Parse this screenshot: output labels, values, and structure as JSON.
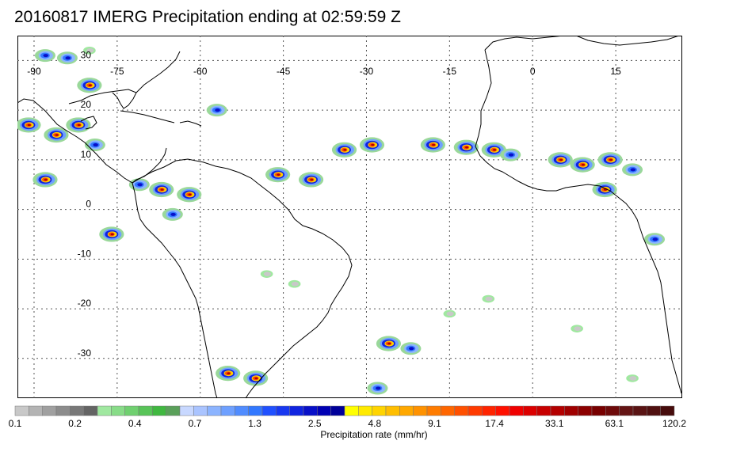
{
  "title": "20160817 IMERG Precipitation ending at 02:59:59 Z",
  "map": {
    "lon_labels": [
      "-90",
      "-75",
      "-60",
      "-45",
      "-30",
      "-15",
      "0",
      "15"
    ],
    "lat_labels": [
      "30",
      "20",
      "10",
      "0",
      "-10",
      "-20",
      "-30"
    ],
    "grid": true,
    "extent": {
      "lon": [
        -93,
        27
      ],
      "lat": [
        -38,
        35
      ]
    },
    "land_outline_color": "#000000",
    "grid_color": "#555555"
  },
  "colorbar": {
    "title": "Precipitation rate (mm/hr)",
    "tick_labels": [
      "0.1",
      "0.2",
      "0.4",
      "0.7",
      "1.3",
      "2.5",
      "4.8",
      "9.1",
      "17.4",
      "33.1",
      "63.1",
      "120.2"
    ],
    "colors": [
      "#c8c8c8",
      "#b4b4b4",
      "#a0a0a0",
      "#8c8c8c",
      "#787878",
      "#646464",
      "#a0e8a0",
      "#88dc88",
      "#70d070",
      "#58c458",
      "#40b840",
      "#5aa05a",
      "#c8d8ff",
      "#aac4ff",
      "#8cb4ff",
      "#6ea0ff",
      "#508cff",
      "#3278ff",
      "#2050ff",
      "#1838f0",
      "#1024e0",
      "#0810c8",
      "#0000b4",
      "#00009a",
      "#ffff00",
      "#ffea00",
      "#ffd400",
      "#ffbe00",
      "#ffa800",
      "#ff9200",
      "#ff7c00",
      "#ff6600",
      "#ff5000",
      "#ff3a00",
      "#ff2400",
      "#ff1000",
      "#f00000",
      "#dc0000",
      "#c80000",
      "#b40000",
      "#a00000",
      "#8c0000",
      "#780000",
      "#6e0a0a",
      "#641414",
      "#5a1414",
      "#501010",
      "#460c0c"
    ]
  },
  "precip_cells": [
    {
      "lon": -88,
      "lat": 31,
      "level": "moderate"
    },
    {
      "lon": -84,
      "lat": 30.5,
      "level": "moderate"
    },
    {
      "lon": -80,
      "lat": 25,
      "level": "heavy"
    },
    {
      "lon": -91,
      "lat": 17,
      "level": "heavy"
    },
    {
      "lon": -86,
      "lat": 15,
      "level": "heavy"
    },
    {
      "lon": -82,
      "lat": 17,
      "level": "heavy"
    },
    {
      "lon": -79,
      "lat": 13,
      "level": "moderate"
    },
    {
      "lon": -88,
      "lat": 6,
      "level": "heavy"
    },
    {
      "lon": -71,
      "lat": 5,
      "level": "moderate"
    },
    {
      "lon": -67,
      "lat": 4,
      "level": "heavy"
    },
    {
      "lon": -62,
      "lat": 3,
      "level": "heavy"
    },
    {
      "lon": -65,
      "lat": -1,
      "level": "moderate"
    },
    {
      "lon": -76,
      "lat": -5,
      "level": "heavy"
    },
    {
      "lon": -57,
      "lat": 20,
      "level": "moderate"
    },
    {
      "lon": -46,
      "lat": 7,
      "level": "heavy"
    },
    {
      "lon": -40,
      "lat": 6,
      "level": "heavy"
    },
    {
      "lon": -34,
      "lat": 12,
      "level": "heavy"
    },
    {
      "lon": -29,
      "lat": 13,
      "level": "heavy"
    },
    {
      "lon": -18,
      "lat": 13,
      "level": "heavy"
    },
    {
      "lon": -12,
      "lat": 12.5,
      "level": "heavy"
    },
    {
      "lon": -7,
      "lat": 12,
      "level": "heavy"
    },
    {
      "lon": -4,
      "lat": 11,
      "level": "moderate"
    },
    {
      "lon": 5,
      "lat": 10,
      "level": "heavy"
    },
    {
      "lon": 9,
      "lat": 9,
      "level": "heavy"
    },
    {
      "lon": 14,
      "lat": 10,
      "level": "heavy"
    },
    {
      "lon": 13,
      "lat": 4,
      "level": "heavy"
    },
    {
      "lon": 18,
      "lat": 8,
      "level": "moderate"
    },
    {
      "lon": 22,
      "lat": -6,
      "level": "moderate"
    },
    {
      "lon": -26,
      "lat": -27,
      "level": "heavy"
    },
    {
      "lon": -22,
      "lat": -28,
      "level": "moderate"
    },
    {
      "lon": -55,
      "lat": -33,
      "level": "heavy"
    },
    {
      "lon": -50,
      "lat": -34,
      "level": "heavy"
    },
    {
      "lon": -28,
      "lat": -36,
      "level": "moderate"
    },
    {
      "lon": -80,
      "lat": 32,
      "level": "light"
    },
    {
      "lon": -48,
      "lat": -13,
      "level": "light"
    },
    {
      "lon": -43,
      "lat": -15,
      "level": "light"
    },
    {
      "lon": -15,
      "lat": -21,
      "level": "light"
    },
    {
      "lon": -8,
      "lat": -18,
      "level": "light"
    },
    {
      "lon": 8,
      "lat": -24,
      "level": "light"
    },
    {
      "lon": 18,
      "lat": -34,
      "level": "light"
    }
  ]
}
